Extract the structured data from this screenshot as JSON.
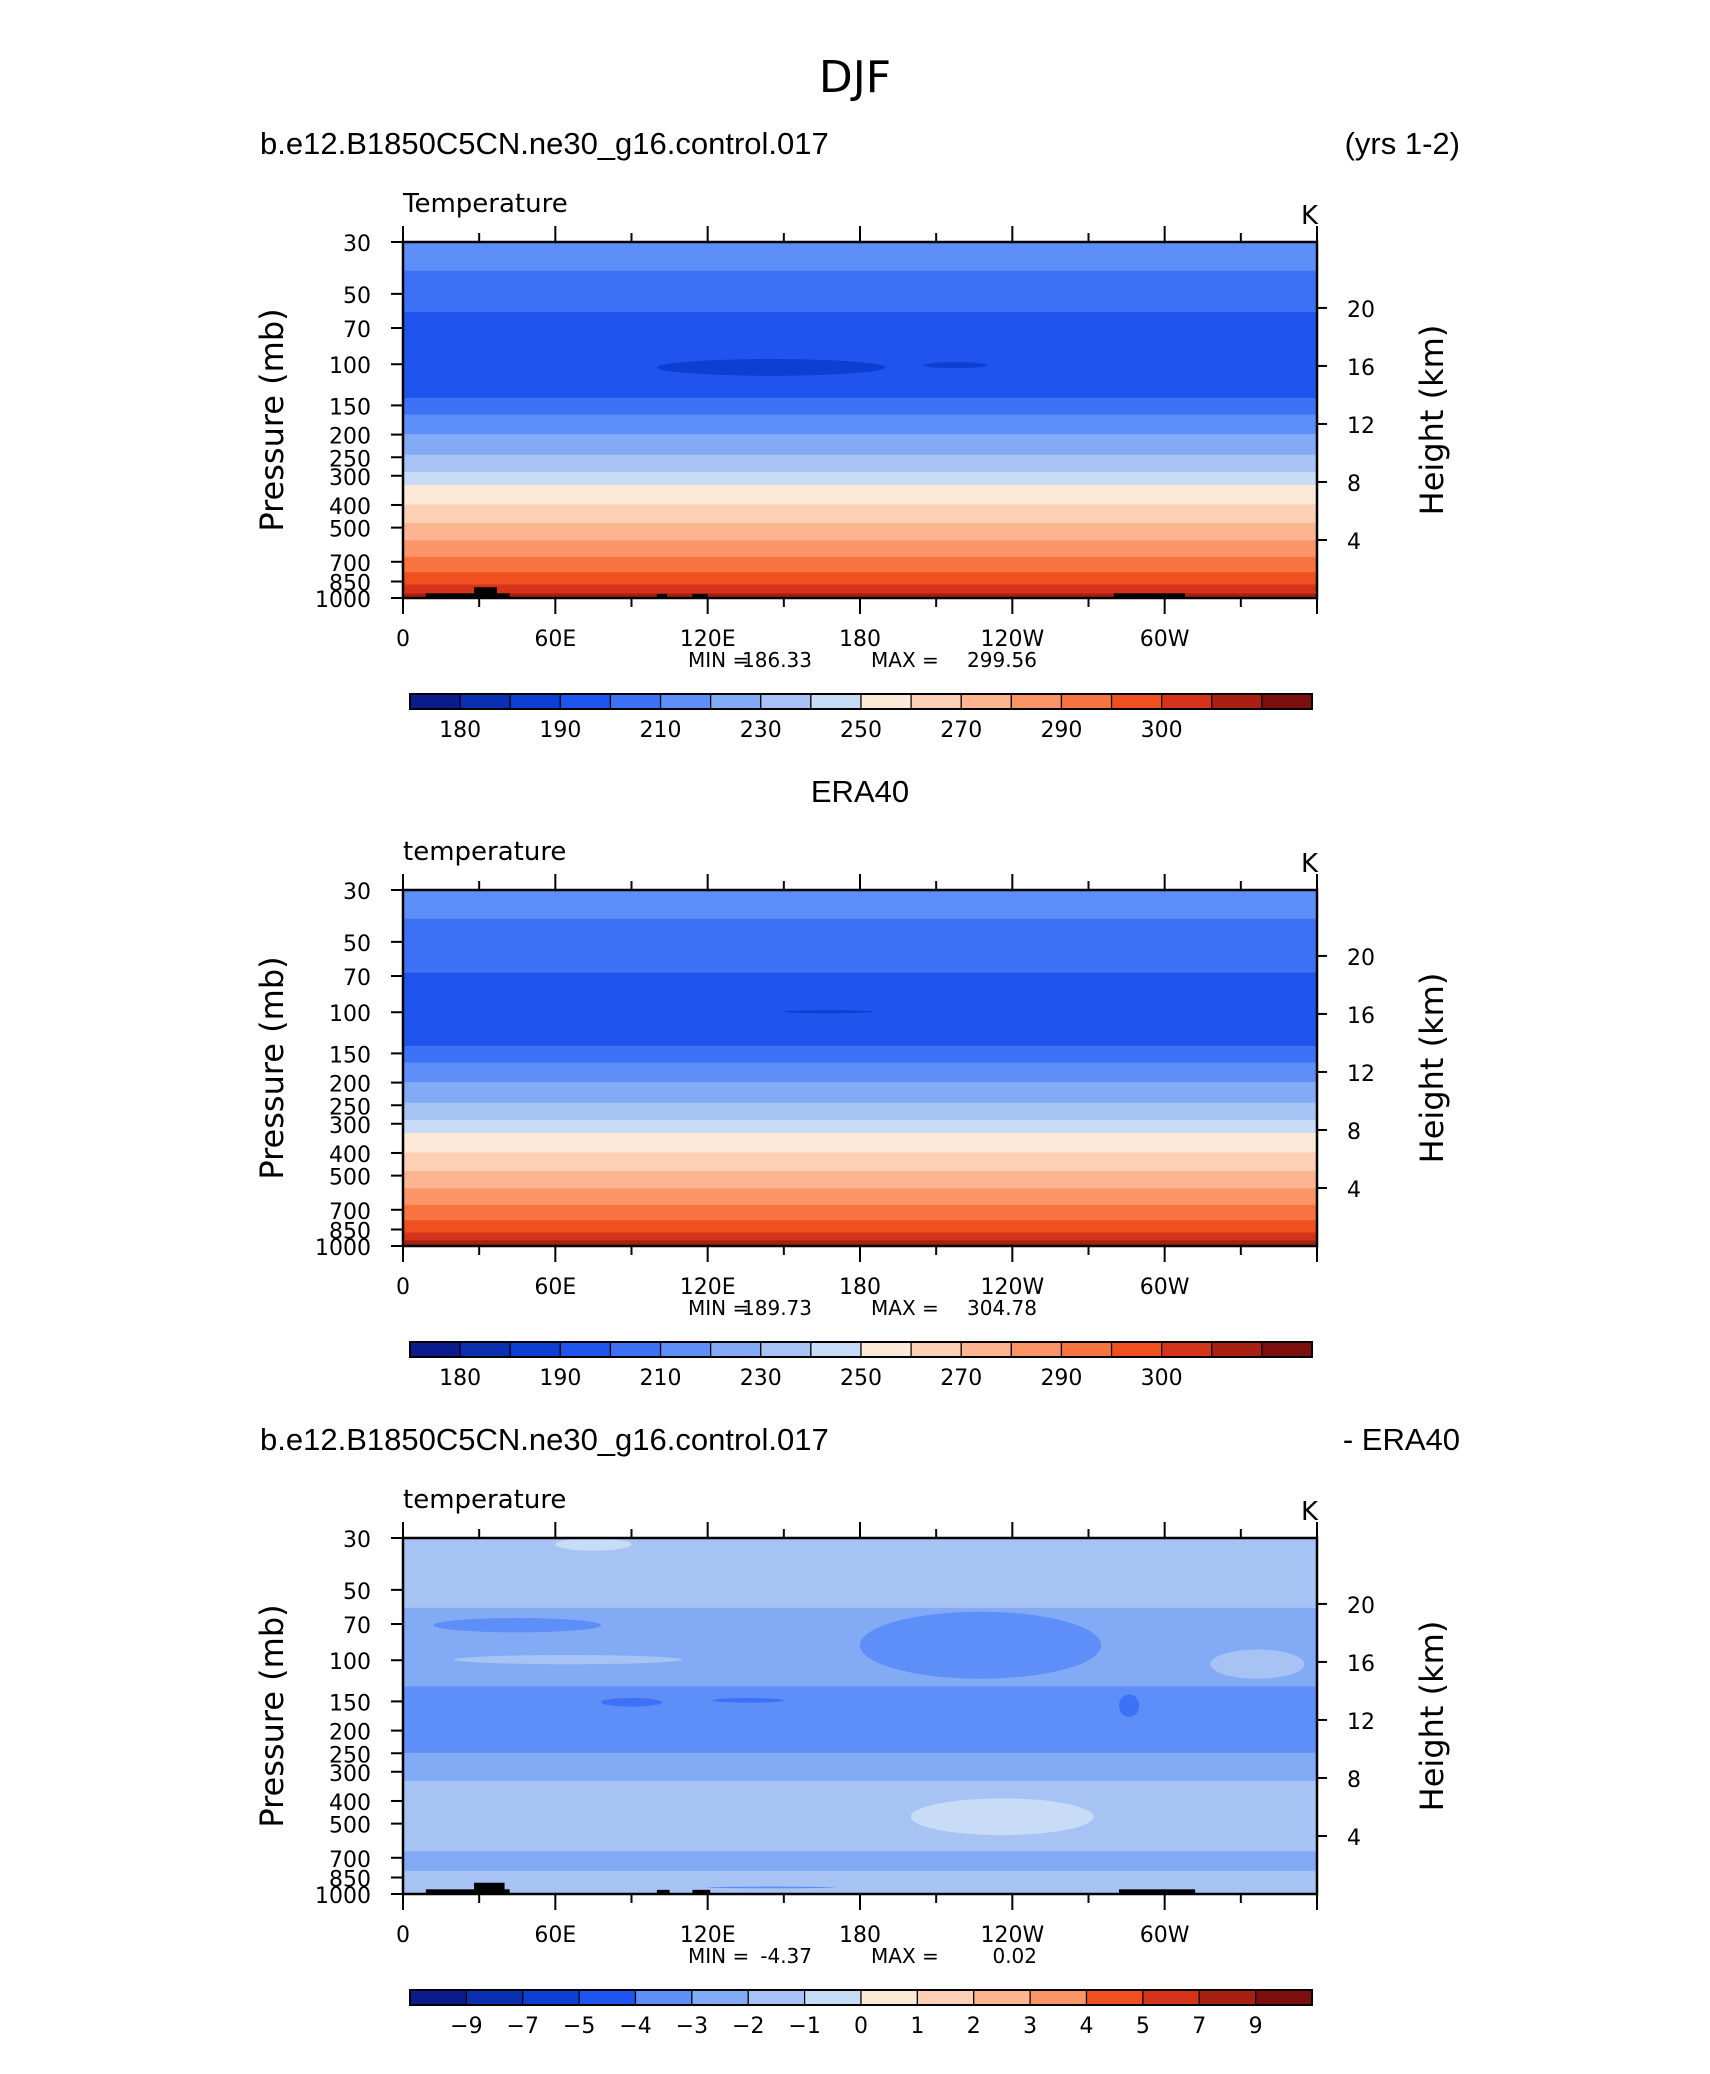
{
  "figure": {
    "title": "DJF"
  },
  "colormap": [
    "#0c1c8c",
    "#0a2fb0",
    "#0d3fd2",
    "#1f55ee",
    "#3d72f7",
    "#5e8ff8",
    "#83abf5",
    "#a6c3f4",
    "#c8dcf8",
    "#fde9d8",
    "#fdd0b6",
    "#fcb491",
    "#fa9568",
    "#f7733f",
    "#f0501f",
    "#d5341a",
    "#a82013",
    "#7d0f0f"
  ],
  "chart_data": [
    {
      "type": "heatmap",
      "left_title": "b.e12.B1850C5CN.ne30_g16.control.017",
      "right_title": "(yrs 1-2)",
      "center_title": "",
      "variable_label": "Temperature",
      "units": "K",
      "ylabel": "Pressure (mb)",
      "ylabel_right": "Height (km)",
      "xlim": [
        0,
        360
      ],
      "x_ticks": [
        "0",
        "60E",
        "120E",
        "180",
        "120W",
        "60W"
      ],
      "x_tick_values": [
        0,
        60,
        120,
        180,
        240,
        300
      ],
      "y_scale": "log",
      "ylim": [
        1000,
        30
      ],
      "y_ticks": [
        30,
        50,
        70,
        100,
        150,
        200,
        250,
        300,
        400,
        500,
        700,
        850,
        1000
      ],
      "height_ticks": [
        4,
        8,
        12,
        16,
        20
      ],
      "stats": {
        "min_label": "MIN",
        "min": "186.33",
        "max_label": "MAX",
        "max": "299.56"
      },
      "contour_levels": [
        "180",
        "190",
        "210",
        "230",
        "250",
        "270",
        "290",
        "300"
      ],
      "level_boundaries": [
        180,
        185,
        190,
        200,
        210,
        220,
        230,
        240,
        250,
        255,
        260,
        265,
        270,
        275,
        280,
        285,
        290,
        295,
        300
      ],
      "bands_top_down": [
        {
          "p": 40,
          "color": 5
        },
        {
          "p": 60,
          "color": 4
        },
        {
          "p": 140,
          "color": 3
        },
        {
          "p": 165,
          "color": 4
        },
        {
          "p": 200,
          "color": 5
        },
        {
          "p": 245,
          "color": 6
        },
        {
          "p": 290,
          "color": 7
        },
        {
          "p": 330,
          "color": 8
        },
        {
          "p": 400,
          "color": 9
        },
        {
          "p": 480,
          "color": 10
        },
        {
          "p": 570,
          "color": 11
        },
        {
          "p": 670,
          "color": 12
        },
        {
          "p": 780,
          "color": 13
        },
        {
          "p": 880,
          "color": 14
        },
        {
          "p": 960,
          "color": 15
        },
        {
          "p": 1000,
          "color": 16
        }
      ],
      "features": [
        {
          "lon": [
            100,
            190
          ],
          "p": [
            95,
            112
          ],
          "color": 2
        },
        {
          "lon": [
            205,
            230
          ],
          "p": [
            98,
            104
          ],
          "color": 2
        }
      ],
      "topography": [
        {
          "lon": [
            9,
            28
          ],
          "p": 955
        },
        {
          "lon": [
            28,
            37
          ],
          "p": 900
        },
        {
          "lon": [
            37,
            42
          ],
          "p": 955
        },
        {
          "lon": [
            100,
            104
          ],
          "p": 960
        },
        {
          "lon": [
            114,
            120
          ],
          "p": 960
        },
        {
          "lon": [
            280,
            308
          ],
          "p": 955
        }
      ]
    },
    {
      "type": "heatmap",
      "left_title": "",
      "right_title": "",
      "center_title": "ERA40",
      "variable_label": "temperature",
      "units": "K",
      "ylabel": "Pressure (mb)",
      "ylabel_right": "Height (km)",
      "xlim": [
        0,
        360
      ],
      "x_ticks": [
        "0",
        "60E",
        "120E",
        "180",
        "120W",
        "60W"
      ],
      "x_tick_values": [
        0,
        60,
        120,
        180,
        240,
        300
      ],
      "y_scale": "log",
      "ylim": [
        1000,
        30
      ],
      "y_ticks": [
        30,
        50,
        70,
        100,
        150,
        200,
        250,
        300,
        400,
        500,
        700,
        850,
        1000
      ],
      "height_ticks": [
        4,
        8,
        12,
        16,
        20
      ],
      "stats": {
        "min_label": "MIN",
        "min": "189.73",
        "max_label": "MAX",
        "max": "304.78"
      },
      "contour_levels": [
        "180",
        "190",
        "210",
        "230",
        "250",
        "270",
        "290",
        "300"
      ],
      "level_boundaries": [
        180,
        185,
        190,
        200,
        210,
        220,
        230,
        240,
        250,
        255,
        260,
        265,
        270,
        275,
        280,
        285,
        290,
        295,
        300
      ],
      "bands_top_down": [
        {
          "p": 40,
          "color": 5
        },
        {
          "p": 68,
          "color": 4
        },
        {
          "p": 140,
          "color": 3
        },
        {
          "p": 165,
          "color": 4
        },
        {
          "p": 200,
          "color": 5
        },
        {
          "p": 245,
          "color": 6
        },
        {
          "p": 290,
          "color": 7
        },
        {
          "p": 330,
          "color": 8
        },
        {
          "p": 400,
          "color": 9
        },
        {
          "p": 480,
          "color": 10
        },
        {
          "p": 570,
          "color": 11
        },
        {
          "p": 670,
          "color": 12
        },
        {
          "p": 780,
          "color": 13
        },
        {
          "p": 880,
          "color": 14
        },
        {
          "p": 950,
          "color": 15
        },
        {
          "p": 1000,
          "color": 16
        }
      ],
      "features": [
        {
          "lon": [
            150,
            185
          ],
          "p": [
            98,
            101
          ],
          "color": 2
        }
      ],
      "topography": []
    },
    {
      "type": "heatmap",
      "left_title": "b.e12.B1850C5CN.ne30_g16.control.017",
      "right_title": "- ERA40",
      "center_title": "",
      "variable_label": "temperature",
      "units": "K",
      "ylabel": "Pressure (mb)",
      "ylabel_right": "Height (km)",
      "xlim": [
        0,
        360
      ],
      "x_ticks": [
        "0",
        "60E",
        "120E",
        "180",
        "120W",
        "60W"
      ],
      "x_tick_values": [
        0,
        60,
        120,
        180,
        240,
        300
      ],
      "y_scale": "log",
      "ylim": [
        1000,
        30
      ],
      "y_ticks": [
        30,
        50,
        70,
        100,
        150,
        200,
        250,
        300,
        400,
        500,
        700,
        850,
        1000
      ],
      "height_ticks": [
        4,
        8,
        12,
        16,
        20
      ],
      "stats": {
        "min_label": "MIN",
        "min": "-4.37",
        "max_label": "MAX",
        "max": "0.02"
      },
      "contour_levels": [
        "−9",
        "−7",
        "−5",
        "−4",
        "−3",
        "−2",
        "−1",
        "0",
        "1",
        "2",
        "3",
        "4",
        "5",
        "7",
        "9"
      ],
      "level_boundaries": [
        -11,
        -9,
        -7,
        -5,
        -4,
        -3,
        -2,
        -1,
        0,
        1,
        2,
        3,
        4,
        5,
        7,
        9,
        11
      ],
      "bands_top_down": [
        {
          "p": 60,
          "color": 7
        },
        {
          "p": 100,
          "color": 6
        },
        {
          "p": 130,
          "color": 6
        },
        {
          "p": 250,
          "color": 5
        },
        {
          "p": 330,
          "color": 6
        },
        {
          "p": 660,
          "color": 7
        },
        {
          "p": 800,
          "color": 6
        },
        {
          "p": 1000,
          "color": 7
        }
      ],
      "features": [
        {
          "lon": [
            60,
            90
          ],
          "p": [
            30,
            34
          ],
          "color": 8
        },
        {
          "lon": [
            12,
            78
          ],
          "p": [
            66,
            76
          ],
          "color": 5
        },
        {
          "lon": [
            180,
            275
          ],
          "p": [
            62,
            120
          ],
          "color": 5
        },
        {
          "lon": [
            20,
            110
          ],
          "p": [
            95,
            104
          ],
          "color": 7
        },
        {
          "lon": [
            78,
            102
          ],
          "p": [
            145,
            158
          ],
          "color": 4
        },
        {
          "lon": [
            122,
            150
          ],
          "p": [
            145,
            152
          ],
          "color": 4
        },
        {
          "lon": [
            282,
            290
          ],
          "p": [
            140,
            175
          ],
          "color": 4
        },
        {
          "lon": [
            318,
            355
          ],
          "p": [
            90,
            120
          ],
          "color": 7
        },
        {
          "lon": [
            200,
            272
          ],
          "p": [
            390,
            560
          ],
          "color": 8
        },
        {
          "lon": [
            8,
            22
          ],
          "p": [
            800,
            860
          ],
          "color": 7
        },
        {
          "lon": [
            120,
            170
          ],
          "p": [
            930,
            945
          ],
          "color": 5
        }
      ],
      "topography": [
        {
          "lon": [
            9,
            28
          ],
          "p": 955
        },
        {
          "lon": [
            28,
            40
          ],
          "p": 895
        },
        {
          "lon": [
            40,
            42
          ],
          "p": 955
        },
        {
          "lon": [
            100,
            105
          ],
          "p": 960
        },
        {
          "lon": [
            114,
            121
          ],
          "p": 960
        },
        {
          "lon": [
            282,
            312
          ],
          "p": 955
        }
      ]
    }
  ]
}
